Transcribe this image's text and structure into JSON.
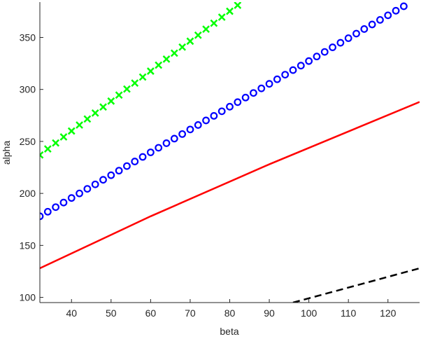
{
  "chart_data": {
    "type": "line",
    "title": "",
    "xlabel": "beta",
    "ylabel": "alpha",
    "xlim": [
      32,
      128
    ],
    "ylim": [
      95,
      384
    ],
    "xticks": [
      40,
      50,
      60,
      70,
      80,
      90,
      100,
      110,
      120
    ],
    "yticks": [
      100,
      150,
      200,
      250,
      300,
      350
    ],
    "grid": false,
    "series": [
      {
        "name": "red-line",
        "style": "solid",
        "color": "#ff0000",
        "x": [
          32,
          60,
          90,
          128
        ],
        "y": [
          128,
          178,
          228,
          288
        ]
      },
      {
        "name": "black-dashed",
        "style": "dashed",
        "color": "#000000",
        "x": [
          96,
          128
        ],
        "y": [
          95,
          128
        ]
      },
      {
        "name": "blue-circles",
        "style": "marker-o",
        "color": "#0000ff",
        "x": [
          32,
          34,
          36,
          38,
          40,
          42,
          44,
          46,
          48,
          50,
          52,
          54,
          56,
          58,
          60,
          62,
          64,
          66,
          68,
          70,
          72,
          74,
          76,
          78,
          80,
          82,
          84,
          86,
          88,
          90,
          92,
          94,
          96,
          98,
          100,
          102,
          104,
          106,
          108,
          110,
          112,
          114,
          116,
          118,
          120,
          122,
          124
        ],
        "y": [
          178,
          182.4,
          186.8,
          191.2,
          195.6,
          200.0,
          204.4,
          208.7,
          213.1,
          217.5,
          221.9,
          226.3,
          230.7,
          235.1,
          239.5,
          243.9,
          248.3,
          252.7,
          257.1,
          261.5,
          265.8,
          270.2,
          274.6,
          279.0,
          283.4,
          287.8,
          292.2,
          296.6,
          301.0,
          305.4,
          309.8,
          314.2,
          318.6,
          322.9,
          327.3,
          331.7,
          336.1,
          340.5,
          344.9,
          349.3,
          353.7,
          358.1,
          362.5,
          366.9,
          371.3,
          375.7,
          380.0
        ]
      },
      {
        "name": "green-crosses",
        "style": "marker-x",
        "color": "#00ff00",
        "x": [
          32,
          34,
          36,
          38,
          40,
          42,
          44,
          46,
          48,
          50,
          52,
          54,
          56,
          58,
          60,
          62,
          64,
          66,
          68,
          70,
          72,
          74,
          76,
          78,
          80,
          82
        ],
        "y": [
          237,
          242.8,
          248.5,
          254.3,
          260.0,
          265.8,
          271.6,
          277.3,
          283.1,
          288.8,
          294.6,
          300.4,
          306.1,
          311.9,
          317.6,
          323.4,
          329.2,
          334.9,
          340.7,
          346.4,
          352.2,
          358.0,
          363.7,
          369.5,
          375.2,
          381.0
        ]
      }
    ]
  }
}
